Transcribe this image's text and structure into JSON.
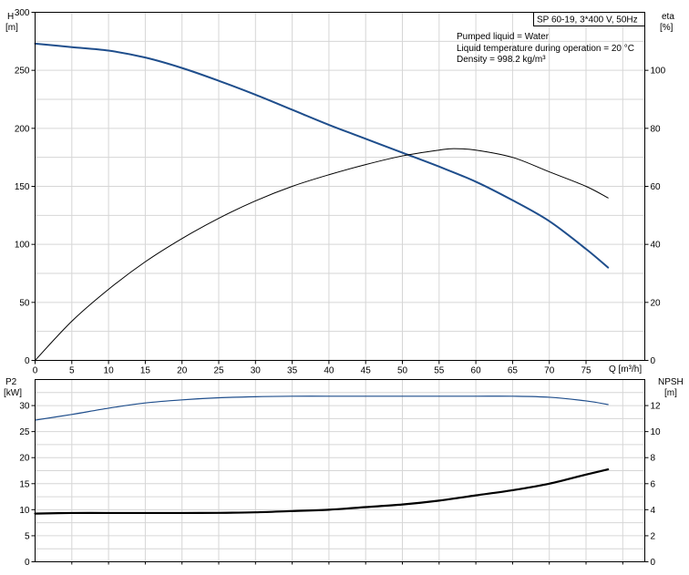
{
  "info": {
    "model": "SP 60-19, 3*400 V, 50Hz",
    "lines": [
      "Pumped liquid = Water",
      "Liquid temperature during operation = 20 °C",
      "Density = 998.2 kg/m³"
    ]
  },
  "colors": {
    "head": "#1f4e8c",
    "eta": "#000000",
    "p2": "#1f4e8c",
    "npsh": "#000000",
    "grid": "#d6d6d6"
  },
  "chart_data": [
    {
      "type": "line",
      "panel": "top",
      "xlabel": "Q [m³/h]",
      "xlim": [
        0,
        83
      ],
      "xticks": [
        0,
        5,
        10,
        15,
        20,
        25,
        30,
        35,
        40,
        45,
        50,
        55,
        60,
        65,
        70,
        75
      ],
      "ylabel_left": [
        "H",
        "[m]"
      ],
      "ylim_left": [
        0,
        300
      ],
      "yticks_left": [
        0,
        50,
        100,
        150,
        200,
        250,
        300
      ],
      "ylabel_right": [
        "eta",
        "[%]"
      ],
      "ylim_right": [
        0,
        120
      ],
      "yticks_right": [
        0,
        20,
        40,
        60,
        80,
        100
      ],
      "grid": true,
      "series": [
        {
          "key": "head",
          "axis": "left",
          "stroke_width": 2,
          "x": [
            0,
            5,
            10,
            15,
            20,
            25,
            30,
            35,
            40,
            45,
            50,
            55,
            60,
            65,
            70,
            75,
            78
          ],
          "y": [
            273,
            270,
            267,
            261,
            252,
            241,
            229,
            216,
            203,
            191,
            179,
            167,
            154,
            138,
            120,
            96,
            80
          ]
        },
        {
          "key": "eta",
          "axis": "right",
          "stroke_width": 1,
          "x": [
            0,
            5,
            10,
            15,
            20,
            25,
            30,
            35,
            40,
            45,
            50,
            55,
            57,
            60,
            65,
            70,
            75,
            78
          ],
          "y": [
            0,
            13.5,
            24.5,
            34,
            42,
            49,
            55,
            60,
            64,
            67.5,
            70.5,
            72.5,
            73,
            72.5,
            70,
            65,
            60,
            56
          ]
        }
      ]
    },
    {
      "type": "line",
      "panel": "bottom",
      "xlim": [
        0,
        83
      ],
      "ylabel_left": [
        "P2",
        "[kW]"
      ],
      "ylim_left": [
        0,
        35
      ],
      "yticks_left": [
        0,
        5,
        10,
        15,
        20,
        25,
        30
      ],
      "ylabel_right": [
        "NPSH",
        "[m]"
      ],
      "ylim_right": [
        0,
        14
      ],
      "yticks_right": [
        0,
        2,
        4,
        6,
        8,
        10,
        12
      ],
      "grid": true,
      "series": [
        {
          "key": "p2",
          "axis": "left",
          "stroke_width": 1.2,
          "x": [
            0,
            5,
            10,
            15,
            20,
            25,
            30,
            35,
            40,
            45,
            50,
            55,
            60,
            65,
            70,
            75,
            78
          ],
          "y": [
            27.2,
            28.3,
            29.5,
            30.5,
            31.1,
            31.5,
            31.7,
            31.8,
            31.8,
            31.8,
            31.8,
            31.8,
            31.8,
            31.8,
            31.6,
            30.9,
            30.2
          ]
        },
        {
          "key": "npsh",
          "axis": "right",
          "stroke_width": 2.2,
          "x": [
            0,
            5,
            10,
            15,
            20,
            25,
            30,
            35,
            40,
            45,
            50,
            55,
            60,
            65,
            70,
            75,
            78
          ],
          "y": [
            3.7,
            3.75,
            3.75,
            3.75,
            3.75,
            3.76,
            3.8,
            3.9,
            4.0,
            4.2,
            4.4,
            4.7,
            5.1,
            5.5,
            6.0,
            6.7,
            7.1
          ]
        }
      ]
    }
  ]
}
